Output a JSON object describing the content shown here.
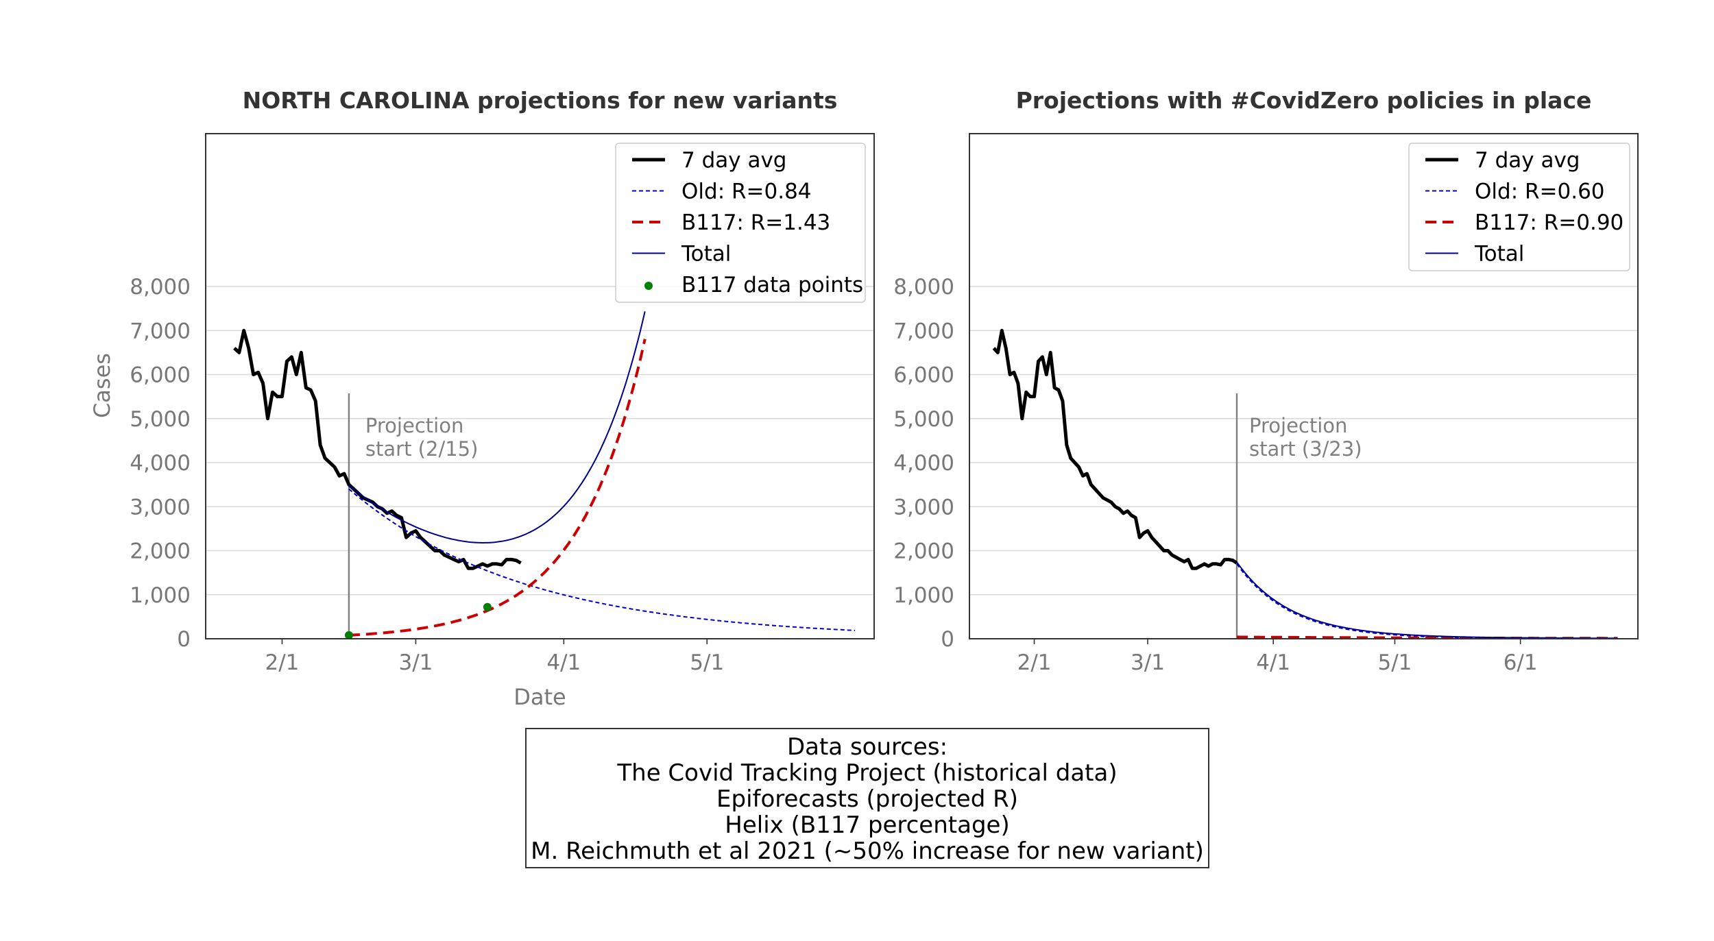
{
  "chart_data": [
    {
      "type": "line",
      "title": "NORTH CAROLINA projections for new variants",
      "xlabel": "Date",
      "ylabel": "Cases",
      "ylim": [
        0,
        8000
      ],
      "xlim": [
        "2021-01-16",
        "2021-06-05"
      ],
      "grid": "horizontal",
      "legend_position": "top-right",
      "y_ticks": [
        0,
        1000,
        2000,
        3000,
        4000,
        5000,
        6000,
        7000,
        8000
      ],
      "y_tick_labels": [
        "0",
        "1,000",
        "2,000",
        "3,000",
        "4,000",
        "5,000",
        "6,000",
        "7,000",
        "8,000"
      ],
      "x_ticks": [
        "2021-02-01",
        "2021-03-01",
        "2021-04-01",
        "2021-05-01"
      ],
      "x_tick_labels": [
        "2/1",
        "3/1",
        "4/1",
        "5/1"
      ],
      "projection_start": "2021-02-15",
      "annotation": [
        "Projection",
        "start (2/15)"
      ],
      "series": [
        {
          "name": "7 day avg",
          "style": "solid-thick",
          "color": "#000000",
          "x": [
            "2021-01-22",
            "2021-01-23",
            "2021-01-24",
            "2021-01-25",
            "2021-01-26",
            "2021-01-27",
            "2021-01-28",
            "2021-01-29",
            "2021-01-30",
            "2021-01-31",
            "2021-02-01",
            "2021-02-02",
            "2021-02-03",
            "2021-02-04",
            "2021-02-05",
            "2021-02-06",
            "2021-02-07",
            "2021-02-08",
            "2021-02-09",
            "2021-02-10",
            "2021-02-11",
            "2021-02-12",
            "2021-02-13",
            "2021-02-14",
            "2021-02-15",
            "2021-02-16",
            "2021-02-17",
            "2021-02-18",
            "2021-02-19",
            "2021-02-20",
            "2021-02-21",
            "2021-02-22",
            "2021-02-23",
            "2021-02-24",
            "2021-02-25",
            "2021-02-26",
            "2021-02-27",
            "2021-02-28",
            "2021-03-01",
            "2021-03-02",
            "2021-03-03",
            "2021-03-04",
            "2021-03-05",
            "2021-03-06",
            "2021-03-07",
            "2021-03-08",
            "2021-03-09",
            "2021-03-10",
            "2021-03-11",
            "2021-03-12",
            "2021-03-13",
            "2021-03-14",
            "2021-03-15",
            "2021-03-16",
            "2021-03-17",
            "2021-03-18",
            "2021-03-19",
            "2021-03-20",
            "2021-03-21",
            "2021-03-22",
            "2021-03-23"
          ],
          "values": [
            6600,
            6500,
            7000,
            6600,
            6000,
            6050,
            5800,
            5000,
            5600,
            5500,
            5500,
            6300,
            6400,
            6000,
            6500,
            5700,
            5650,
            5400,
            4400,
            4100,
            4000,
            3900,
            3700,
            3750,
            3500,
            3400,
            3300,
            3200,
            3150,
            3100,
            3000,
            2950,
            2850,
            2900,
            2800,
            2750,
            2300,
            2400,
            2450,
            2300,
            2200,
            2100,
            2000,
            2000,
            1900,
            1850,
            1800,
            1750,
            1800,
            1600,
            1600,
            1650,
            1700,
            1650,
            1700,
            1700,
            1680,
            1800,
            1800,
            1780,
            1720
          ]
        },
        {
          "name": "Old: R=0.84",
          "style": "dotted",
          "color": "#0000cc",
          "function": "exponential",
          "x_start": "2021-02-15",
          "x_end": "2021-06-01",
          "start_value": 3400,
          "daily_growth": 0.9731
        },
        {
          "name": "B117: R=1.43",
          "style": "dashed",
          "color": "#cc0000",
          "function": "exponential",
          "x_start": "2021-02-15",
          "x_end": "2021-04-18",
          "start_value": 80,
          "daily_growth": 1.0743
        },
        {
          "name": "Total",
          "style": "solid-thin",
          "color": "#00008b",
          "function": "sum",
          "x_start": "2021-02-15",
          "x_end": "2021-04-18"
        },
        {
          "name": "B117 data points",
          "style": "marker",
          "color": "#008000",
          "x": [
            "2021-02-15",
            "2021-03-16"
          ],
          "values": [
            80,
            720
          ]
        }
      ]
    },
    {
      "type": "line",
      "title": "Projections with #CovidZero policies in place",
      "ylim": [
        0,
        8000
      ],
      "xlim": [
        "2021-01-16",
        "2021-06-30"
      ],
      "grid": "horizontal",
      "legend_position": "top-right",
      "y_ticks": [
        0,
        1000,
        2000,
        3000,
        4000,
        5000,
        6000,
        7000,
        8000
      ],
      "y_tick_labels": [
        "0",
        "1,000",
        "2,000",
        "3,000",
        "4,000",
        "5,000",
        "6,000",
        "7,000",
        "8,000"
      ],
      "x_ticks": [
        "2021-02-01",
        "2021-03-01",
        "2021-04-01",
        "2021-05-01",
        "2021-06-01"
      ],
      "x_tick_labels": [
        "2/1",
        "3/1",
        "4/1",
        "5/1",
        "6/1"
      ],
      "projection_start": "2021-03-23",
      "annotation": [
        "Projection",
        "start (3/23)"
      ],
      "series": [
        {
          "name": "7 day avg",
          "style": "solid-thick",
          "color": "#000000",
          "x": [
            "2021-01-22",
            "2021-01-23",
            "2021-01-24",
            "2021-01-25",
            "2021-01-26",
            "2021-01-27",
            "2021-01-28",
            "2021-01-29",
            "2021-01-30",
            "2021-01-31",
            "2021-02-01",
            "2021-02-02",
            "2021-02-03",
            "2021-02-04",
            "2021-02-05",
            "2021-02-06",
            "2021-02-07",
            "2021-02-08",
            "2021-02-09",
            "2021-02-10",
            "2021-02-11",
            "2021-02-12",
            "2021-02-13",
            "2021-02-14",
            "2021-02-15",
            "2021-02-16",
            "2021-02-17",
            "2021-02-18",
            "2021-02-19",
            "2021-02-20",
            "2021-02-21",
            "2021-02-22",
            "2021-02-23",
            "2021-02-24",
            "2021-02-25",
            "2021-02-26",
            "2021-02-27",
            "2021-02-28",
            "2021-03-01",
            "2021-03-02",
            "2021-03-03",
            "2021-03-04",
            "2021-03-05",
            "2021-03-06",
            "2021-03-07",
            "2021-03-08",
            "2021-03-09",
            "2021-03-10",
            "2021-03-11",
            "2021-03-12",
            "2021-03-13",
            "2021-03-14",
            "2021-03-15",
            "2021-03-16",
            "2021-03-17",
            "2021-03-18",
            "2021-03-19",
            "2021-03-20",
            "2021-03-21",
            "2021-03-22",
            "2021-03-23"
          ],
          "values": [
            6600,
            6500,
            7000,
            6600,
            6000,
            6050,
            5800,
            5000,
            5600,
            5500,
            5500,
            6300,
            6400,
            6000,
            6500,
            5700,
            5650,
            5400,
            4400,
            4100,
            4000,
            3900,
            3700,
            3750,
            3500,
            3400,
            3300,
            3200,
            3150,
            3100,
            3000,
            2950,
            2850,
            2900,
            2800,
            2750,
            2300,
            2400,
            2450,
            2300,
            2200,
            2100,
            2000,
            2000,
            1900,
            1850,
            1800,
            1750,
            1800,
            1600,
            1600,
            1650,
            1700,
            1650,
            1700,
            1700,
            1680,
            1800,
            1800,
            1780,
            1720
          ]
        },
        {
          "name": "Old: R=0.60",
          "style": "dotted",
          "color": "#0000cc",
          "function": "exponential",
          "x_start": "2021-03-23",
          "x_end": "2021-06-25",
          "start_value": 1700,
          "daily_growth": 0.927
        },
        {
          "name": "B117: R=0.90",
          "style": "dashed",
          "color": "#cc0000",
          "function": "exponential",
          "x_start": "2021-03-23",
          "x_end": "2021-06-25",
          "start_value": 40,
          "daily_growth": 0.985
        },
        {
          "name": "Total",
          "style": "solid-thin",
          "color": "#00008b",
          "function": "sum",
          "x_start": "2021-03-23",
          "x_end": "2021-06-25"
        }
      ]
    }
  ],
  "sources": {
    "lines": [
      "Data sources:",
      "The Covid Tracking Project (historical data)",
      "Epiforecasts (projected R)",
      "Helix (B117 percentage)",
      "M. Reichmuth et al 2021 (~50% increase for new variant)"
    ]
  }
}
